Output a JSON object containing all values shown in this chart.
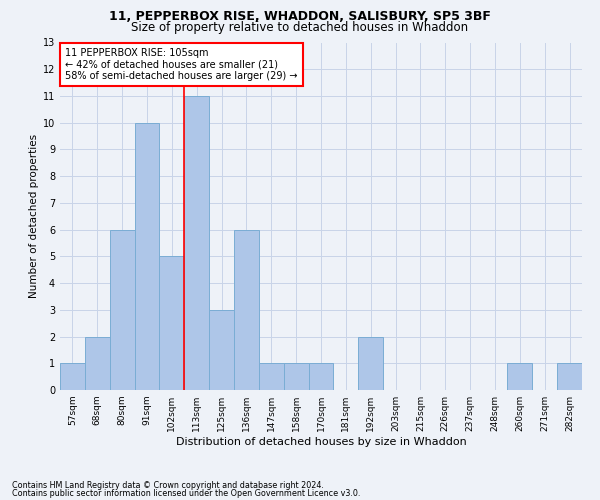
{
  "title1": "11, PEPPERBOX RISE, WHADDON, SALISBURY, SP5 3BF",
  "title2": "Size of property relative to detached houses in Whaddon",
  "xlabel": "Distribution of detached houses by size in Whaddon",
  "ylabel": "Number of detached properties",
  "categories": [
    "57sqm",
    "68sqm",
    "80sqm",
    "91sqm",
    "102sqm",
    "113sqm",
    "125sqm",
    "136sqm",
    "147sqm",
    "158sqm",
    "170sqm",
    "181sqm",
    "192sqm",
    "203sqm",
    "215sqm",
    "226sqm",
    "237sqm",
    "248sqm",
    "260sqm",
    "271sqm",
    "282sqm"
  ],
  "values": [
    1,
    2,
    6,
    10,
    5,
    11,
    3,
    6,
    1,
    1,
    1,
    0,
    2,
    0,
    0,
    0,
    0,
    0,
    1,
    0,
    1
  ],
  "bar_color": "#aec6e8",
  "bar_edge_color": "#7aadd4",
  "vline_x": 4.5,
  "vline_color": "red",
  "ylim": [
    0,
    13
  ],
  "yticks": [
    0,
    1,
    2,
    3,
    4,
    5,
    6,
    7,
    8,
    9,
    10,
    11,
    12,
    13
  ],
  "annotation_title": "11 PEPPERBOX RISE: 105sqm",
  "annotation_line1": "← 42% of detached houses are smaller (21)",
  "annotation_line2": "58% of semi-detached houses are larger (29) →",
  "annotation_box_color": "white",
  "annotation_box_edge": "red",
  "footnote1": "Contains HM Land Registry data © Crown copyright and database right 2024.",
  "footnote2": "Contains public sector information licensed under the Open Government Licence v3.0.",
  "grid_color": "#c8d4e8",
  "background_color": "#eef2f8",
  "title1_fontsize": 9,
  "title2_fontsize": 8.5,
  "xlabel_fontsize": 8,
  "ylabel_fontsize": 7.5,
  "xtick_fontsize": 6.5,
  "ytick_fontsize": 7,
  "annot_fontsize": 7,
  "footnote_fontsize": 5.8
}
